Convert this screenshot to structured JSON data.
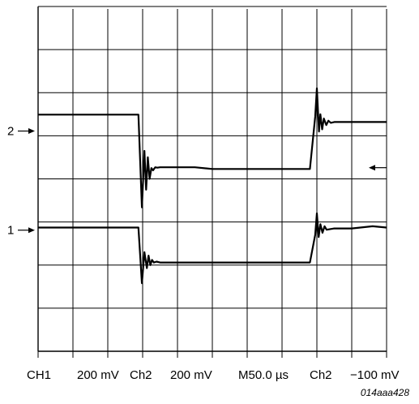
{
  "chart_data": {
    "type": "line",
    "grid": true,
    "divisions": {
      "x": 10,
      "y": 8
    },
    "xlim": [
      0,
      10
    ],
    "ylim": [
      0,
      8
    ],
    "channel_markers": [
      {
        "label": "2",
        "level_div": 5.11
      },
      {
        "label": "1",
        "level_div": 2.81
      }
    ],
    "trigger_marker_level_div": 4.26,
    "series": [
      {
        "name": "",
        "x": [
          0,
          2.88,
          2.98,
          3.05,
          3.1,
          3.15,
          3.2,
          3.25,
          3.3,
          3.36,
          3.42,
          3.5,
          3.7,
          4.5,
          5.0,
          7.8,
          7.95,
          8.0,
          8.06,
          8.1,
          8.15,
          8.2,
          8.27,
          8.33,
          8.4,
          8.5,
          10
        ],
        "y": [
          5.49,
          5.49,
          3.34,
          4.65,
          3.75,
          4.5,
          4.0,
          4.25,
          4.2,
          4.27,
          4.26,
          4.27,
          4.27,
          4.27,
          4.23,
          4.23,
          5.44,
          6.1,
          5.1,
          5.5,
          5.15,
          5.4,
          5.25,
          5.35,
          5.3,
          5.32,
          5.32
        ]
      },
      {
        "name": "",
        "x": [
          0,
          2.88,
          2.98,
          3.05,
          3.12,
          3.17,
          3.22,
          3.27,
          3.32,
          3.4,
          3.5,
          4.0,
          7.8,
          7.95,
          8.0,
          8.05,
          8.1,
          8.16,
          8.22,
          8.28,
          8.5,
          9.0,
          9.6,
          10
        ],
        "y": [
          2.87,
          2.87,
          1.58,
          2.3,
          1.93,
          2.22,
          2.0,
          2.12,
          2.06,
          2.08,
          2.06,
          2.06,
          2.06,
          2.7,
          3.2,
          2.65,
          2.95,
          2.75,
          2.9,
          2.82,
          2.85,
          2.85,
          2.9,
          2.87
        ]
      }
    ],
    "readout": {
      "ch1": "CH1",
      "ch1_scale": "200 mV",
      "ch2": "Ch2",
      "ch2_scale": "200 mV",
      "timebase": "M50.0 µs",
      "trigger_source": "Ch2",
      "trigger_level": "−100 mV"
    },
    "figure_id": "014aaa428"
  }
}
